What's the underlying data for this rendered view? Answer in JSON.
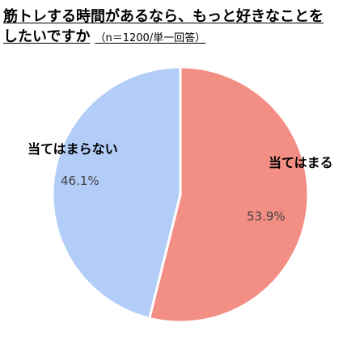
{
  "title": {
    "line1": "筋トレする時間があるなら、もっと好きなことを",
    "line2": "したいですか",
    "note": "（n＝1200/単一回答）"
  },
  "colors": {
    "agree": "#f28e84",
    "disagree": "#b3cdf9",
    "separator": "#ffffff"
  },
  "chart_data": {
    "type": "pie",
    "title": "筋トレする時間があるなら、もっと好きなことをしたいですか",
    "note": "（n＝1200/単一回答）",
    "start": "12 o'clock",
    "direction": "clockwise",
    "slices": [
      {
        "label": "当てはまる",
        "value": 53.9,
        "display": "53.9%",
        "color": "#f28e84"
      },
      {
        "label": "当てはまらない",
        "value": 46.1,
        "display": "46.1%",
        "color": "#b3cdf9"
      }
    ]
  }
}
